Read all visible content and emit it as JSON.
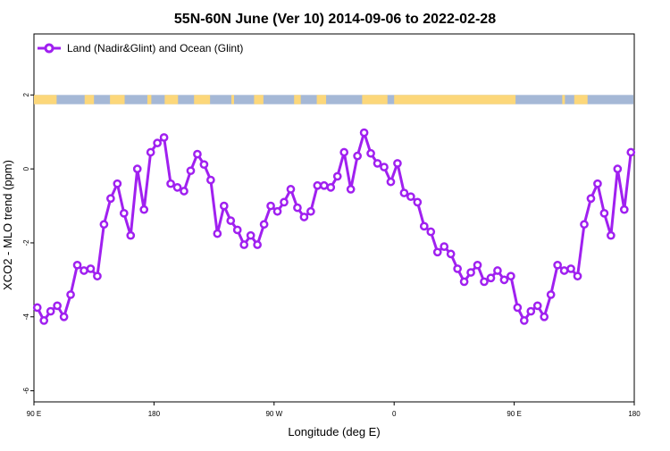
{
  "chart_data": {
    "type": "line",
    "title": "55N-60N June (Ver 10)   2014-09-06 to 2022-02-28",
    "xlabel": "Longitude (deg E)",
    "ylabel": "XCO2 - MLO trend (ppm)",
    "x_ticks": [
      {
        "value": 90,
        "label": "90 E"
      },
      {
        "value": 180,
        "label": "180"
      },
      {
        "value": 270,
        "label": "90 W"
      },
      {
        "value": 360,
        "label": "0"
      },
      {
        "value": 450,
        "label": "90 E"
      },
      {
        "value": 540,
        "label": "180"
      }
    ],
    "y_ticks": [
      {
        "value": 2,
        "label": "2"
      },
      {
        "value": 0,
        "label": "0"
      },
      {
        "value": -2,
        "label": "-2"
      },
      {
        "value": -4,
        "label": "-4"
      },
      {
        "value": -6,
        "label": "-6"
      }
    ],
    "xlim": [
      90,
      540
    ],
    "ylim": [
      -6.3,
      3.65
    ],
    "grid": false,
    "legend_position": "top-left",
    "land_ocean_band": {
      "y_range": [
        1.75,
        2.0
      ],
      "ocean_color": "#a5b8d6",
      "land_color": "#fcd77a"
    },
    "series": [
      {
        "name": "Land (Nadir&Glint) and Ocean (Glint)",
        "color": "#a020f0",
        "marker": "open-circle",
        "x": [
          92.5,
          97.5,
          102.5,
          107.5,
          112.5,
          117.5,
          122.5,
          127.5,
          132.5,
          137.5,
          142.5,
          147.5,
          152.5,
          157.5,
          162.5,
          167.5,
          172.5,
          177.5,
          182.5,
          187.5,
          192.5,
          197.5,
          202.5,
          207.5,
          212.5,
          217.5,
          222.5,
          227.5,
          232.5,
          237.5,
          242.5,
          247.5,
          252.5,
          257.5,
          262.5,
          267.5,
          272.5,
          277.5,
          282.5,
          287.5,
          292.5,
          297.5,
          302.5,
          307.5,
          312.5,
          317.5,
          322.5,
          327.5,
          332.5,
          337.5,
          342.5,
          347.5,
          352.5,
          357.5,
          362.5,
          367.5,
          372.5,
          377.5,
          382.5,
          387.5,
          392.5,
          397.5,
          402.5,
          407.5,
          412.5,
          417.5,
          422.5,
          427.5,
          432.5,
          437.5,
          442.5,
          447.5,
          452.5,
          457.5,
          462.5,
          467.5,
          472.5,
          477.5,
          482.5,
          487.5,
          492.5,
          497.5,
          502.5,
          507.5,
          512.5,
          517.5,
          522.5,
          527.5,
          532.5,
          537.5
        ],
        "y": [
          -3.75,
          -4.1,
          -3.85,
          -3.7,
          -4.0,
          -3.4,
          -2.6,
          -2.75,
          -2.7,
          -2.9,
          -1.5,
          -0.8,
          -0.4,
          -1.2,
          -1.8,
          0.0,
          -1.1,
          0.45,
          0.7,
          0.85,
          -0.4,
          -0.5,
          -0.6,
          -0.05,
          0.4,
          0.12,
          -0.3,
          -1.75,
          -1.0,
          -1.4,
          -1.65,
          -2.05,
          -1.8,
          -2.05,
          -1.5,
          -1.0,
          -1.15,
          -0.9,
          -0.55,
          -1.05,
          -1.3,
          -1.15,
          -0.45,
          -0.45,
          -0.5,
          -0.2,
          0.45,
          -0.55,
          0.35,
          0.98,
          0.42,
          0.15,
          0.05,
          -0.35,
          0.15,
          -0.65,
          -0.75,
          -0.9,
          -1.55,
          -1.7,
          -2.25,
          -2.1,
          -2.3,
          -2.7,
          -3.05,
          -2.8,
          -2.6,
          -3.05,
          -2.95,
          -2.75,
          -3.0,
          -2.9,
          -3.75,
          -4.1,
          -3.85,
          -3.7,
          -4.0,
          -3.4,
          -2.6,
          -2.75,
          -2.7,
          -2.9,
          -1.5,
          -0.8,
          -0.4,
          -1.2,
          -1.8,
          0.0,
          -1.1,
          0.45
        ]
      }
    ]
  }
}
